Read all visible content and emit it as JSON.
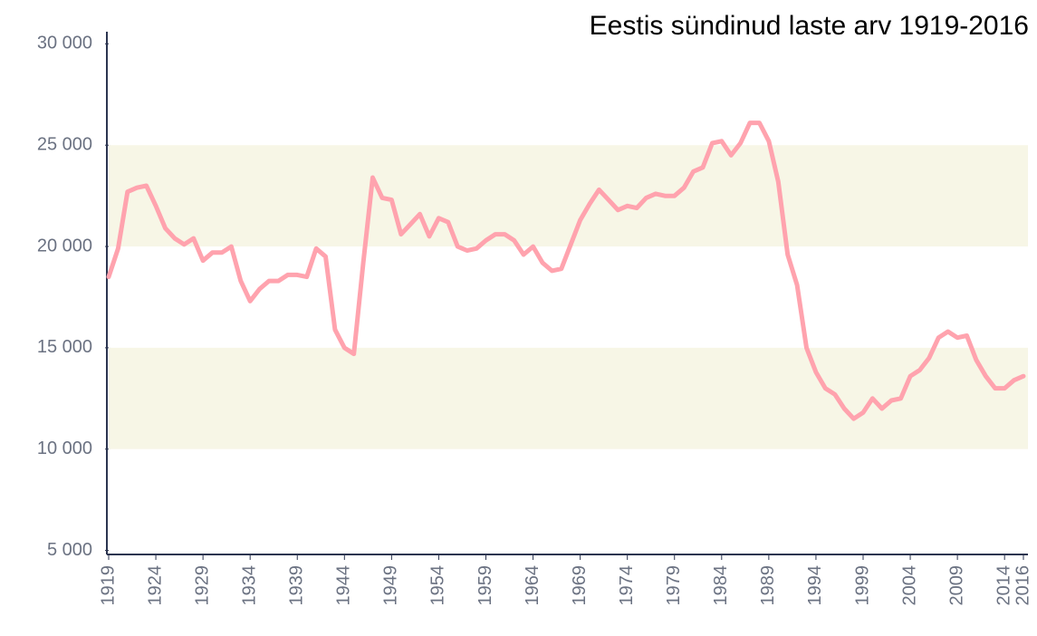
{
  "chart_data": {
    "type": "line",
    "title": "Eestis sündinud laste arv 1919-2016",
    "x": [
      1919,
      1920,
      1921,
      1922,
      1923,
      1924,
      1925,
      1926,
      1927,
      1928,
      1929,
      1930,
      1931,
      1932,
      1933,
      1934,
      1935,
      1936,
      1937,
      1938,
      1939,
      1940,
      1941,
      1942,
      1943,
      1944,
      1945,
      1946,
      1947,
      1948,
      1949,
      1950,
      1951,
      1952,
      1953,
      1954,
      1955,
      1956,
      1957,
      1958,
      1959,
      1960,
      1961,
      1962,
      1963,
      1964,
      1965,
      1966,
      1967,
      1968,
      1969,
      1970,
      1971,
      1972,
      1973,
      1974,
      1975,
      1976,
      1977,
      1978,
      1979,
      1980,
      1981,
      1982,
      1983,
      1984,
      1985,
      1986,
      1987,
      1988,
      1989,
      1990,
      1991,
      1992,
      1993,
      1994,
      1995,
      1996,
      1997,
      1998,
      1999,
      2000,
      2001,
      2002,
      2003,
      2004,
      2005,
      2006,
      2007,
      2008,
      2009,
      2010,
      2011,
      2012,
      2013,
      2014,
      2015,
      2016
    ],
    "values": [
      18500,
      19900,
      22700,
      22900,
      23000,
      22000,
      20900,
      20400,
      20100,
      20400,
      19300,
      19700,
      19700,
      20000,
      18300,
      17300,
      17900,
      18300,
      18300,
      18600,
      18600,
      18500,
      19900,
      19500,
      15900,
      15000,
      14700,
      19200,
      23400,
      22400,
      22300,
      20600,
      21100,
      21600,
      20500,
      21400,
      21200,
      20000,
      19800,
      19900,
      20300,
      20600,
      20600,
      20300,
      19600,
      20000,
      19200,
      18800,
      18900,
      20100,
      21300,
      22100,
      22800,
      22300,
      21800,
      22000,
      21900,
      22400,
      22600,
      22500,
      22500,
      22900,
      23700,
      23900,
      25100,
      25200,
      24500,
      25100,
      26100,
      26100,
      25200,
      23200,
      19600,
      18100,
      15000,
      13800,
      13000,
      12700,
      12000,
      11500,
      11800,
      12500,
      12000,
      12400,
      12500,
      13600,
      13900,
      14500,
      15500,
      15800,
      15500,
      15600,
      14400,
      13600,
      13000,
      13000,
      13400,
      13600
    ],
    "color": "#ffa3ae",
    "band_color": "#f7f6e6",
    "bands": [
      [
        10000,
        15000
      ],
      [
        20000,
        25000
      ]
    ],
    "xlim": [
      1919,
      2016
    ],
    "xticks": [
      1919,
      1924,
      1929,
      1934,
      1939,
      1944,
      1949,
      1954,
      1959,
      1964,
      1969,
      1974,
      1979,
      1984,
      1989,
      1994,
      1999,
      2004,
      2009,
      2014,
      2016
    ],
    "ylim": [
      4800,
      30600
    ],
    "yticks": [
      {
        "value": 5000,
        "label": "5 000"
      },
      {
        "value": 10000,
        "label": "10 000"
      },
      {
        "value": 15000,
        "label": "15 000"
      },
      {
        "value": 20000,
        "label": "20 000"
      },
      {
        "value": 25000,
        "label": "25 000"
      },
      {
        "value": 30000,
        "label": "30 000"
      }
    ],
    "grid": false
  }
}
